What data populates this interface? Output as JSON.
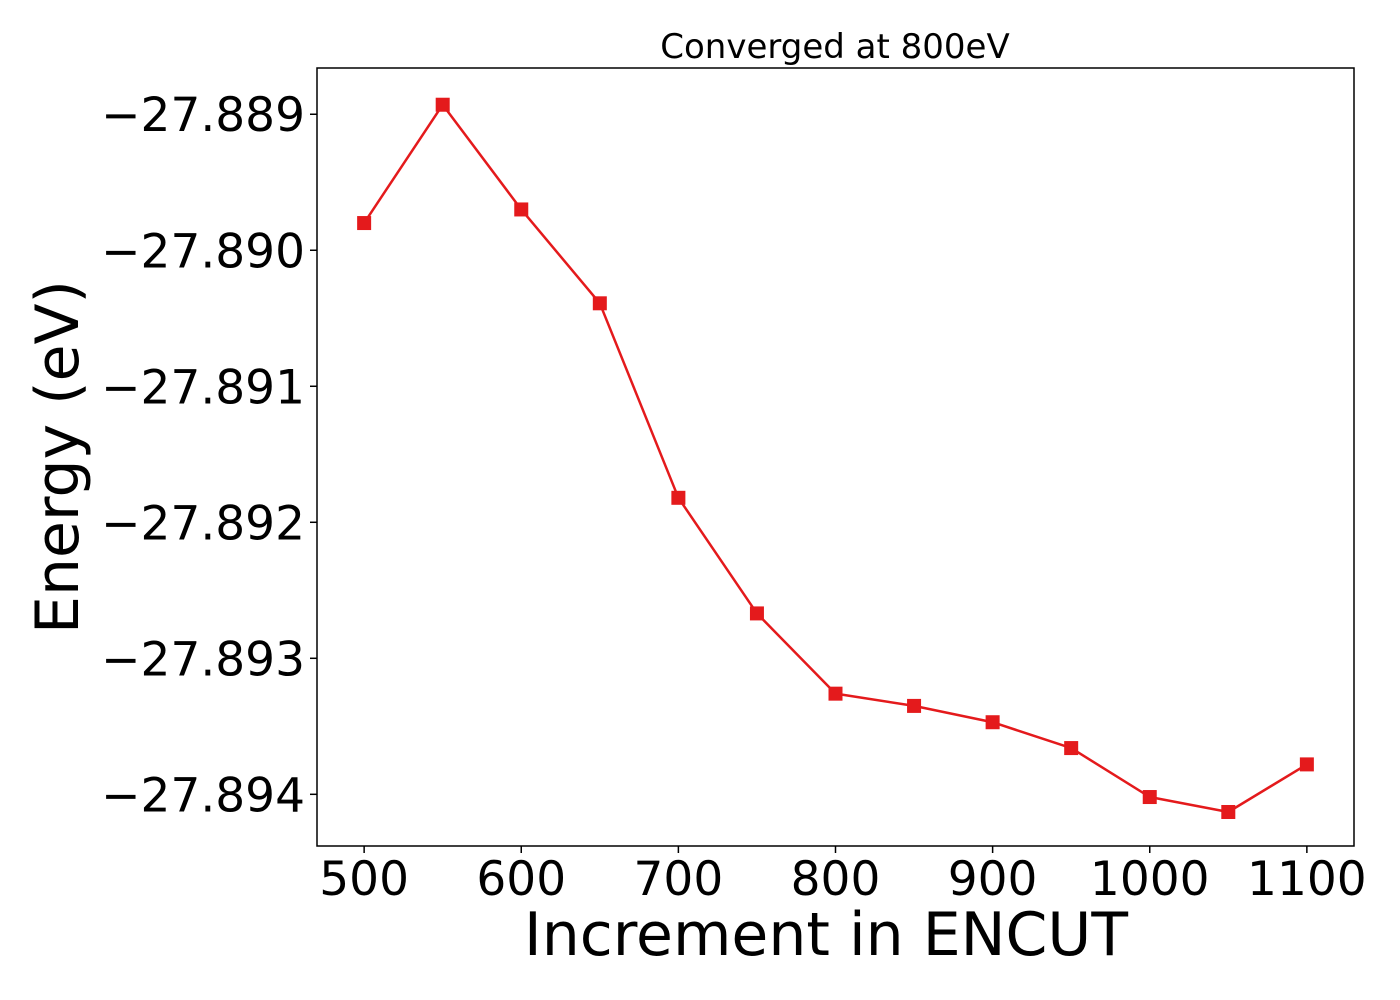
{
  "chart_data": {
    "type": "line",
    "title": "Converged at 800eV",
    "xlabel": "Increment in ENCUT",
    "ylabel": "Energy (eV)",
    "xlim": [
      470,
      1130
    ],
    "ylim": [
      -27.89438,
      -27.88866
    ],
    "x_ticks": [
      500,
      600,
      700,
      800,
      900,
      1000,
      1100
    ],
    "x_tick_labels": [
      "500",
      "600",
      "700",
      "800",
      "900",
      "1000",
      "1100"
    ],
    "y_ticks": [
      -27.889,
      -27.89,
      -27.891,
      -27.892,
      -27.893,
      -27.894
    ],
    "y_tick_labels": [
      "−27.889",
      "−27.890",
      "−27.891",
      "−27.892",
      "−27.893",
      "−27.894"
    ],
    "grid": false,
    "marker": "square",
    "color": "#e41a1c",
    "series": [
      {
        "x": [
          500,
          550,
          600,
          650,
          700,
          750,
          800,
          850,
          900,
          950,
          1000,
          1050,
          1100
        ],
        "y": [
          -27.8898,
          -27.88893,
          -27.8897,
          -27.89039,
          -27.89182,
          -27.89267,
          -27.89326,
          -27.89335,
          -27.89347,
          -27.89366,
          -27.89402,
          -27.89413,
          -27.89378
        ]
      }
    ]
  }
}
